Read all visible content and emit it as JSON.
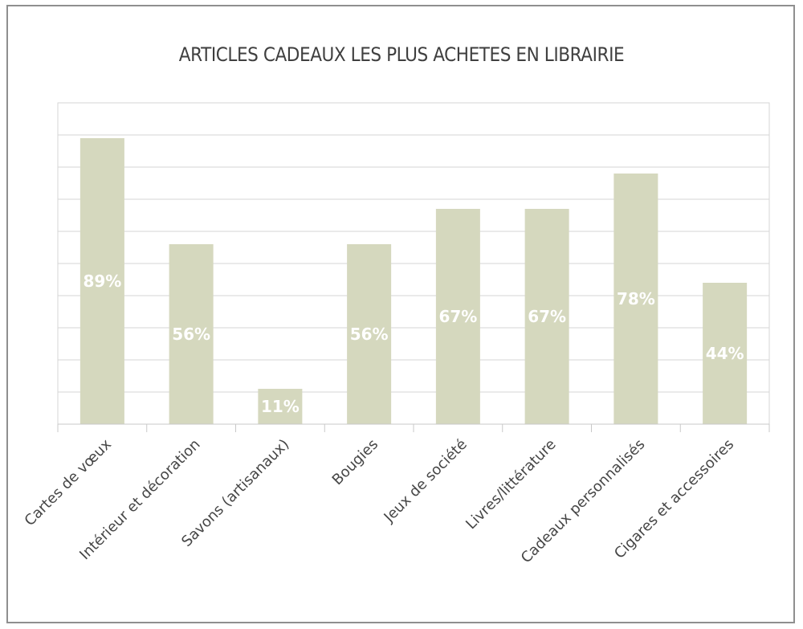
{
  "chart_data": {
    "type": "bar",
    "title": "ARTICLES CADEAUX LES PLUS ACHETES EN LIBRAIRIE",
    "categories": [
      "Cartes de vœux",
      "Intérieur et décoration",
      "Savons (artisanaux)",
      "Bougies",
      "Jeux de société",
      "Livres/littérature",
      "Cadeaux personnalisés",
      "Cigares et accessoires"
    ],
    "values": [
      89,
      56,
      11,
      56,
      67,
      67,
      78,
      44
    ],
    "data_labels": [
      "89%",
      "56%",
      "11%",
      "56%",
      "67%",
      "67%",
      "78%",
      "44%"
    ],
    "unit": "%",
    "ylim": [
      0,
      100
    ],
    "grid": true,
    "legend": "none",
    "colors": {
      "bar": "#d5d8be",
      "grid": "#d6d6d6",
      "axis": "#c8c8c8",
      "data_label": "#ffffff",
      "frame": "#8f8f8f"
    }
  }
}
